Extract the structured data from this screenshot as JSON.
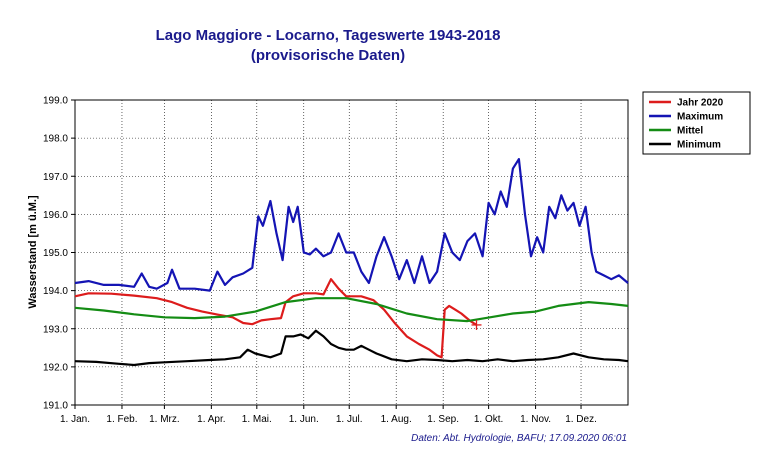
{
  "chart_data": {
    "type": "line",
    "title": "Lago Maggiore - Locarno, Tageswerte 1943-2018",
    "subtitle": "(provisorische Daten)",
    "ylabel": "Wasserstand [m ü.M.]",
    "xlabel": "",
    "ylim": [
      191.0,
      199.0
    ],
    "yticks": [
      "191.0",
      "192.0",
      "193.0",
      "194.0",
      "195.0",
      "196.0",
      "197.0",
      "198.0",
      "199.0"
    ],
    "xlim": [
      1,
      366
    ],
    "xticks": [
      {
        "day": 1,
        "label": "1. Jan."
      },
      {
        "day": 32,
        "label": "1. Feb."
      },
      {
        "day": 60,
        "label": "1. Mrz."
      },
      {
        "day": 91,
        "label": "1. Apr."
      },
      {
        "day": 121,
        "label": "1. Mai."
      },
      {
        "day": 152,
        "label": "1. Jun."
      },
      {
        "day": 182,
        "label": "1. Jul."
      },
      {
        "day": 213,
        "label": "1. Aug."
      },
      {
        "day": 244,
        "label": "1. Sep."
      },
      {
        "day": 274,
        "label": "1. Okt."
      },
      {
        "day": 305,
        "label": "1. Nov."
      },
      {
        "day": 335,
        "label": "1. Dez."
      }
    ],
    "grid": true,
    "legend_position": "top-right",
    "source": "Daten: Abt. Hydrologie, BAFU; 17.09.2020 06:01",
    "series": [
      {
        "name": "Jahr 2020",
        "color": "#dd1c1c",
        "points": [
          [
            1,
            193.85
          ],
          [
            10,
            193.93
          ],
          [
            25,
            193.92
          ],
          [
            40,
            193.87
          ],
          [
            55,
            193.8
          ],
          [
            65,
            193.7
          ],
          [
            75,
            193.55
          ],
          [
            85,
            193.45
          ],
          [
            95,
            193.37
          ],
          [
            105,
            193.3
          ],
          [
            112,
            193.15
          ],
          [
            118,
            193.12
          ],
          [
            124,
            193.22
          ],
          [
            130,
            193.25
          ],
          [
            137,
            193.28
          ],
          [
            140,
            193.7
          ],
          [
            145,
            193.85
          ],
          [
            152,
            193.93
          ],
          [
            160,
            193.93
          ],
          [
            165,
            193.9
          ],
          [
            170,
            194.3
          ],
          [
            175,
            194.05
          ],
          [
            180,
            193.85
          ],
          [
            190,
            193.85
          ],
          [
            198,
            193.75
          ],
          [
            205,
            193.5
          ],
          [
            212,
            193.15
          ],
          [
            220,
            192.8
          ],
          [
            228,
            192.6
          ],
          [
            235,
            192.45
          ],
          [
            240,
            192.3
          ],
          [
            243,
            192.25
          ],
          [
            245,
            193.5
          ],
          [
            248,
            193.6
          ],
          [
            252,
            193.5
          ],
          [
            256,
            193.4
          ],
          [
            262,
            193.2
          ],
          [
            266,
            193.1
          ]
        ]
      },
      {
        "name": "Maximum",
        "color": "#1414b4",
        "points": [
          [
            1,
            194.2
          ],
          [
            10,
            194.25
          ],
          [
            20,
            194.15
          ],
          [
            30,
            194.15
          ],
          [
            40,
            194.1
          ],
          [
            45,
            194.45
          ],
          [
            50,
            194.1
          ],
          [
            55,
            194.05
          ],
          [
            62,
            194.2
          ],
          [
            65,
            194.55
          ],
          [
            70,
            194.05
          ],
          [
            80,
            194.05
          ],
          [
            90,
            194.0
          ],
          [
            95,
            194.5
          ],
          [
            100,
            194.15
          ],
          [
            105,
            194.35
          ],
          [
            112,
            194.45
          ],
          [
            118,
            194.6
          ],
          [
            122,
            195.95
          ],
          [
            125,
            195.7
          ],
          [
            130,
            196.35
          ],
          [
            134,
            195.5
          ],
          [
            138,
            194.8
          ],
          [
            142,
            196.2
          ],
          [
            145,
            195.8
          ],
          [
            148,
            196.2
          ],
          [
            152,
            195.0
          ],
          [
            156,
            194.95
          ],
          [
            160,
            195.1
          ],
          [
            165,
            194.9
          ],
          [
            170,
            195.0
          ],
          [
            175,
            195.5
          ],
          [
            180,
            195.0
          ],
          [
            185,
            195.0
          ],
          [
            190,
            194.5
          ],
          [
            195,
            194.2
          ],
          [
            200,
            194.9
          ],
          [
            205,
            195.4
          ],
          [
            210,
            194.9
          ],
          [
            215,
            194.3
          ],
          [
            220,
            194.8
          ],
          [
            225,
            194.2
          ],
          [
            230,
            194.9
          ],
          [
            235,
            194.2
          ],
          [
            240,
            194.5
          ],
          [
            245,
            195.5
          ],
          [
            250,
            195.0
          ],
          [
            255,
            194.8
          ],
          [
            260,
            195.3
          ],
          [
            265,
            195.5
          ],
          [
            270,
            194.9
          ],
          [
            274,
            196.3
          ],
          [
            278,
            196.0
          ],
          [
            282,
            196.6
          ],
          [
            286,
            196.2
          ],
          [
            290,
            197.2
          ],
          [
            294,
            197.45
          ],
          [
            298,
            196.0
          ],
          [
            302,
            194.9
          ],
          [
            306,
            195.4
          ],
          [
            310,
            195.0
          ],
          [
            314,
            196.2
          ],
          [
            318,
            195.9
          ],
          [
            322,
            196.5
          ],
          [
            326,
            196.1
          ],
          [
            330,
            196.3
          ],
          [
            334,
            195.7
          ],
          [
            338,
            196.2
          ],
          [
            342,
            195.0
          ],
          [
            345,
            194.5
          ],
          [
            350,
            194.4
          ],
          [
            355,
            194.3
          ],
          [
            360,
            194.4
          ],
          [
            366,
            194.2
          ]
        ]
      },
      {
        "name": "Mittel",
        "color": "#148c14",
        "points": [
          [
            1,
            193.55
          ],
          [
            20,
            193.48
          ],
          [
            40,
            193.38
          ],
          [
            60,
            193.3
          ],
          [
            80,
            193.28
          ],
          [
            100,
            193.32
          ],
          [
            120,
            193.45
          ],
          [
            140,
            193.7
          ],
          [
            160,
            193.8
          ],
          [
            180,
            193.8
          ],
          [
            200,
            193.65
          ],
          [
            220,
            193.4
          ],
          [
            240,
            193.25
          ],
          [
            260,
            193.2
          ],
          [
            275,
            193.3
          ],
          [
            290,
            193.4
          ],
          [
            305,
            193.45
          ],
          [
            320,
            193.6
          ],
          [
            340,
            193.7
          ],
          [
            355,
            193.65
          ],
          [
            366,
            193.6
          ]
        ]
      },
      {
        "name": "Minimum",
        "color": "#000000",
        "points": [
          [
            1,
            192.15
          ],
          [
            15,
            192.13
          ],
          [
            30,
            192.08
          ],
          [
            40,
            192.05
          ],
          [
            50,
            192.1
          ],
          [
            60,
            192.12
          ],
          [
            75,
            192.15
          ],
          [
            90,
            192.18
          ],
          [
            100,
            192.2
          ],
          [
            110,
            192.25
          ],
          [
            115,
            192.45
          ],
          [
            120,
            192.35
          ],
          [
            125,
            192.3
          ],
          [
            130,
            192.25
          ],
          [
            137,
            192.35
          ],
          [
            140,
            192.8
          ],
          [
            145,
            192.8
          ],
          [
            150,
            192.85
          ],
          [
            155,
            192.75
          ],
          [
            160,
            192.95
          ],
          [
            165,
            192.8
          ],
          [
            170,
            192.6
          ],
          [
            175,
            192.5
          ],
          [
            180,
            192.45
          ],
          [
            185,
            192.45
          ],
          [
            190,
            192.55
          ],
          [
            195,
            192.45
          ],
          [
            200,
            192.35
          ],
          [
            210,
            192.2
          ],
          [
            220,
            192.15
          ],
          [
            230,
            192.2
          ],
          [
            240,
            192.18
          ],
          [
            250,
            192.15
          ],
          [
            260,
            192.18
          ],
          [
            270,
            192.15
          ],
          [
            280,
            192.2
          ],
          [
            290,
            192.15
          ],
          [
            300,
            192.18
          ],
          [
            310,
            192.2
          ],
          [
            320,
            192.25
          ],
          [
            330,
            192.35
          ],
          [
            340,
            192.25
          ],
          [
            350,
            192.2
          ],
          [
            360,
            192.18
          ],
          [
            366,
            192.15
          ]
        ]
      }
    ],
    "annotations": [
      {
        "type": "marker",
        "symbol": "+",
        "series": "Jahr 2020",
        "day": 266,
        "value": 193.1
      }
    ]
  }
}
